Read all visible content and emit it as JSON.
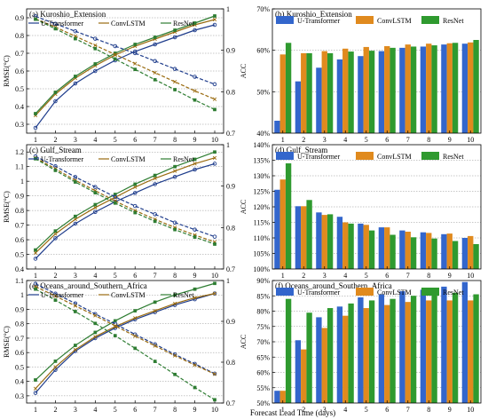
{
  "xlabel": "Forecast Lead Time (days)",
  "legend_labels": [
    "U-Transformer",
    "ConvLSTM",
    "ResNet"
  ],
  "colors": {
    "u": "#3366cc",
    "c": "#e08a1e",
    "r": "#2f9a2f",
    "uLine": "#1f3d8c",
    "cLine": "#9a6b10",
    "rLine": "#2e7d32"
  },
  "chart_data": [
    {
      "type": "line",
      "title": "(a) Kuroshio_Extension",
      "ylabel": "RMSE(°C)",
      "y2label": "ACC",
      "x": [
        1,
        2,
        3,
        4,
        5,
        6,
        7,
        8,
        9,
        10
      ],
      "ylim": [
        0.25,
        0.95
      ],
      "y2lim": [
        0.7,
        1.0
      ],
      "yticks": [
        "0.3",
        "0.4",
        "0.5",
        "0.6",
        "0.7",
        "0.8",
        "0.9"
      ],
      "y2ticks": [
        "0.7",
        "0.8",
        "0.9",
        "1"
      ],
      "series": [
        {
          "name": "U-Transformer",
          "axis": "left",
          "values": [
            0.28,
            0.43,
            0.53,
            0.6,
            0.66,
            0.71,
            0.75,
            0.79,
            0.83,
            0.86
          ]
        },
        {
          "name": "ConvLSTM",
          "axis": "left",
          "values": [
            0.35,
            0.47,
            0.56,
            0.63,
            0.69,
            0.74,
            0.78,
            0.82,
            0.86,
            0.89
          ]
        },
        {
          "name": "ResNet",
          "axis": "left",
          "values": [
            0.36,
            0.48,
            0.57,
            0.64,
            0.7,
            0.75,
            0.79,
            0.83,
            0.87,
            0.91
          ]
        },
        {
          "name": "U-Transformer ACC",
          "axis": "right",
          "dashed": true,
          "values": [
            0.982,
            0.964,
            0.946,
            0.928,
            0.91,
            0.893,
            0.874,
            0.855,
            0.836,
            0.818
          ]
        },
        {
          "name": "ConvLSTM ACC",
          "axis": "right",
          "dashed": true,
          "values": [
            0.976,
            0.956,
            0.934,
            0.912,
            0.89,
            0.868,
            0.846,
            0.824,
            0.802,
            0.782
          ]
        },
        {
          "name": "ResNet ACC",
          "axis": "right",
          "dashed": true,
          "values": [
            0.975,
            0.952,
            0.928,
            0.904,
            0.879,
            0.854,
            0.829,
            0.805,
            0.78,
            0.757
          ]
        }
      ]
    },
    {
      "type": "bar",
      "title": "(b) Kuroshio_Extension",
      "ylabel": "",
      "categories": [
        "1",
        "2",
        "3",
        "4",
        "5",
        "6",
        "7",
        "8",
        "9",
        "10"
      ],
      "ylim": [
        40,
        70
      ],
      "yticks": [
        "40%",
        "50%",
        "60%",
        "70%"
      ],
      "series": [
        {
          "name": "U-Transformer",
          "values": [
            43.0,
            52.5,
            55.8,
            57.8,
            58.6,
            59.8,
            60.6,
            60.9,
            61.4,
            61.6
          ]
        },
        {
          "name": "ConvLSTM",
          "values": [
            59.0,
            59.3,
            59.8,
            60.4,
            60.8,
            61.0,
            61.4,
            61.6,
            61.7,
            61.9
          ]
        },
        {
          "name": "ResNet",
          "values": [
            61.8,
            59.3,
            59.3,
            59.7,
            59.9,
            60.6,
            60.9,
            61.2,
            61.8,
            62.5
          ]
        }
      ]
    },
    {
      "type": "line",
      "title": "(c) Gulf_Stream",
      "ylabel": "RMSE(°C)",
      "y2label": "ACC",
      "x": [
        1,
        2,
        3,
        4,
        5,
        6,
        7,
        8,
        9,
        10
      ],
      "ylim": [
        0.4,
        1.25
      ],
      "y2lim": [
        0.7,
        1.0
      ],
      "yticks": [
        "0.4",
        "0.5",
        "0.6",
        "0.7",
        "0.8",
        "0.9",
        "1",
        "1.1",
        "1.2"
      ],
      "y2ticks": [
        "0.7",
        "0.8",
        "0.9",
        "1"
      ],
      "series": [
        {
          "name": "U-Transformer",
          "axis": "left",
          "values": [
            0.47,
            0.61,
            0.71,
            0.79,
            0.86,
            0.92,
            0.98,
            1.03,
            1.08,
            1.12
          ]
        },
        {
          "name": "ConvLSTM",
          "axis": "left",
          "values": [
            0.51,
            0.64,
            0.74,
            0.82,
            0.89,
            0.96,
            1.02,
            1.07,
            1.12,
            1.16
          ]
        },
        {
          "name": "ResNet",
          "axis": "left",
          "values": [
            0.53,
            0.66,
            0.76,
            0.84,
            0.91,
            0.98,
            1.04,
            1.1,
            1.15,
            1.2
          ]
        },
        {
          "name": "U-Transformer ACC",
          "axis": "right",
          "dashed": true,
          "values": [
            0.972,
            0.948,
            0.922,
            0.898,
            0.874,
            0.852,
            0.832,
            0.812,
            0.795,
            0.778
          ]
        },
        {
          "name": "ConvLSTM ACC",
          "axis": "right",
          "dashed": true,
          "values": [
            0.968,
            0.942,
            0.914,
            0.889,
            0.864,
            0.841,
            0.82,
            0.8,
            0.782,
            0.765
          ]
        },
        {
          "name": "ResNet ACC",
          "axis": "right",
          "dashed": true,
          "values": [
            0.966,
            0.938,
            0.91,
            0.884,
            0.859,
            0.836,
            0.815,
            0.795,
            0.777,
            0.76
          ]
        }
      ]
    },
    {
      "type": "bar",
      "title": "(d) Gulf_Stream",
      "ylabel": "",
      "categories": [
        "1",
        "2",
        "3",
        "4",
        "5",
        "6",
        "7",
        "8",
        "9",
        "10"
      ],
      "ylim": [
        100,
        140
      ],
      "yticks": [
        "100%",
        "105%",
        "110%",
        "115%",
        "120%",
        "125%",
        "130%",
        "135%",
        "140%"
      ],
      "series": [
        {
          "name": "U-Transformer",
          "values": [
            125.5,
            120.2,
            118.2,
            116.8,
            114.6,
            113.4,
            112.4,
            111.8,
            111.2,
            110.0
          ]
        },
        {
          "name": "ConvLSTM",
          "values": [
            128.8,
            120.2,
            117.4,
            115.0,
            114.2,
            113.4,
            112.0,
            111.6,
            111.4,
            110.6
          ]
        },
        {
          "name": "ResNet",
          "values": [
            134.0,
            122.2,
            117.6,
            114.6,
            112.4,
            111.0,
            110.2,
            109.8,
            109.0,
            108.0
          ]
        }
      ]
    },
    {
      "type": "line",
      "title": "(e) Oceans_around_Southern_Africa",
      "ylabel": "RMSE(°C)",
      "y2label": "ACC",
      "x": [
        1,
        2,
        3,
        4,
        5,
        6,
        7,
        8,
        9,
        10
      ],
      "ylim": [
        0.25,
        1.1
      ],
      "y2lim": [
        0.7,
        1.0
      ],
      "yticks": [
        "0.3",
        "0.4",
        "0.5",
        "0.6",
        "0.7",
        "0.8",
        "0.9",
        "1",
        "1.1"
      ],
      "y2ticks": [
        "0.7",
        "0.8",
        "0.9",
        "1"
      ],
      "series": [
        {
          "name": "U-Transformer",
          "axis": "left",
          "values": [
            0.32,
            0.48,
            0.61,
            0.7,
            0.77,
            0.83,
            0.88,
            0.93,
            0.97,
            1.01
          ]
        },
        {
          "name": "ConvLSTM",
          "axis": "left",
          "values": [
            0.35,
            0.5,
            0.62,
            0.71,
            0.78,
            0.84,
            0.89,
            0.94,
            0.98,
            1.01
          ]
        },
        {
          "name": "ResNet",
          "axis": "left",
          "values": [
            0.41,
            0.54,
            0.65,
            0.74,
            0.82,
            0.89,
            0.95,
            1.0,
            1.04,
            1.08
          ]
        },
        {
          "name": "U-Transformer ACC",
          "axis": "right",
          "dashed": true,
          "values": [
            0.992,
            0.968,
            0.944,
            0.918,
            0.894,
            0.868,
            0.844,
            0.819,
            0.796,
            0.772
          ]
        },
        {
          "name": "ConvLSTM ACC",
          "axis": "right",
          "dashed": true,
          "values": [
            0.985,
            0.962,
            0.938,
            0.914,
            0.889,
            0.864,
            0.84,
            0.816,
            0.793,
            0.771
          ]
        },
        {
          "name": "ResNet ACC",
          "axis": "right",
          "dashed": true,
          "values": [
            0.979,
            0.952,
            0.924,
            0.895,
            0.865,
            0.834,
            0.802,
            0.77,
            0.738,
            0.708
          ]
        }
      ]
    },
    {
      "type": "bar",
      "title": "(f) Oceans_around_Southern_Africa",
      "ylabel": "",
      "categories": [
        "1",
        "2",
        "3",
        "4",
        "5",
        "6",
        "7",
        "8",
        "9",
        "10"
      ],
      "ylim": [
        50,
        90
      ],
      "yticks": [
        "50%",
        "55%",
        "60%",
        "65%",
        "70%",
        "75%",
        "80%",
        "85%",
        "90%"
      ],
      "series": [
        {
          "name": "U-Transformer",
          "values": [
            54.0,
            70.5,
            78.0,
            81.5,
            84.5,
            85.5,
            86.5,
            87.0,
            88.0,
            89.5
          ]
        },
        {
          "name": "ConvLSTM",
          "values": [
            54.0,
            67.5,
            74.5,
            78.5,
            81.0,
            82.0,
            83.0,
            83.5,
            83.5,
            83.5
          ]
        },
        {
          "name": "ResNet",
          "values": [
            84.0,
            79.5,
            81.0,
            82.5,
            83.5,
            84.0,
            85.0,
            85.5,
            86.0,
            85.5
          ]
        }
      ]
    }
  ]
}
